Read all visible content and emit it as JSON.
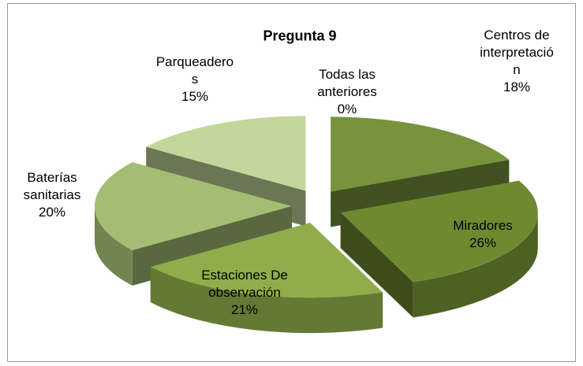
{
  "chart_data": {
    "type": "pie3d",
    "title": "Pregunta 9",
    "categories": [
      "Centros de interpretación",
      "Miradores",
      "Estaciones De observación",
      "Baterías sanitarias",
      "Parqueaderos",
      "Todas las anteriores"
    ],
    "values": [
      18,
      26,
      21,
      20,
      15,
      0
    ],
    "value_labels": [
      "18%",
      "26%",
      "21%",
      "20%",
      "15%",
      "0%"
    ],
    "colors": [
      "#77933c",
      "#6e8a30",
      "#8fad4a",
      "#a3bd72",
      "#c3d69b",
      "#9bbb59"
    ]
  }
}
